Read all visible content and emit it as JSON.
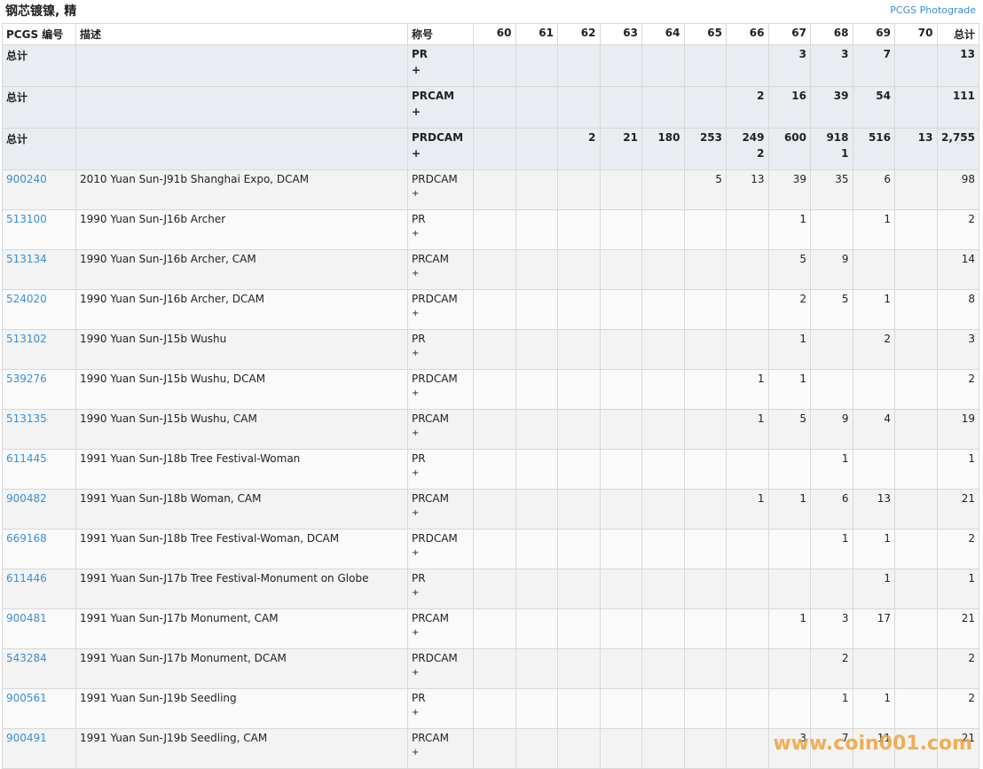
{
  "header": {
    "title": "钢芯镀镍, 精",
    "link": "PCGS Photograde"
  },
  "table": {
    "columns": [
      "PCGS 编号",
      "描述",
      "称号",
      "60",
      "61",
      "62",
      "63",
      "64",
      "65",
      "66",
      "67",
      "68",
      "69",
      "70",
      "总计"
    ],
    "summary": [
      {
        "label": "总计",
        "designation": "PR",
        "plus": "+",
        "grades": [
          null,
          null,
          null,
          null,
          null,
          null,
          null,
          3,
          3,
          7,
          null
        ],
        "total": 13
      },
      {
        "label": "总计",
        "designation": "PRCAM",
        "plus": "+",
        "grades": [
          null,
          null,
          null,
          null,
          null,
          null,
          2,
          16,
          39,
          54,
          null
        ],
        "total": 111
      },
      {
        "label": "总计",
        "designation": "PRDCAM",
        "plus": "+",
        "grades": [
          null,
          null,
          2,
          21,
          180,
          253,
          249,
          600,
          918,
          516,
          13
        ],
        "plus_grades": [
          null,
          null,
          null,
          null,
          null,
          null,
          2,
          null,
          1,
          null,
          null
        ],
        "total": "2,755"
      }
    ],
    "rows": [
      {
        "pcgs": "900240",
        "description": "2010 Yuan Sun-J91b Shanghai Expo, DCAM",
        "designation": "PRDCAM",
        "plus": "+",
        "grades": [
          null,
          null,
          null,
          null,
          null,
          5,
          13,
          39,
          35,
          6,
          null
        ],
        "total": 98
      },
      {
        "pcgs": "513100",
        "description": "1990 Yuan Sun-J16b Archer",
        "designation": "PR",
        "plus": "+",
        "grades": [
          null,
          null,
          null,
          null,
          null,
          null,
          null,
          1,
          null,
          1,
          null
        ],
        "total": 2
      },
      {
        "pcgs": "513134",
        "description": "1990 Yuan Sun-J16b Archer, CAM",
        "designation": "PRCAM",
        "plus": "+",
        "grades": [
          null,
          null,
          null,
          null,
          null,
          null,
          null,
          5,
          9,
          null,
          null
        ],
        "total": 14
      },
      {
        "pcgs": "524020",
        "description": "1990 Yuan Sun-J16b Archer, DCAM",
        "designation": "PRDCAM",
        "plus": "+",
        "grades": [
          null,
          null,
          null,
          null,
          null,
          null,
          null,
          2,
          5,
          1,
          null
        ],
        "total": 8
      },
      {
        "pcgs": "513102",
        "description": "1990 Yuan Sun-J15b Wushu",
        "designation": "PR",
        "plus": "+",
        "grades": [
          null,
          null,
          null,
          null,
          null,
          null,
          null,
          1,
          null,
          2,
          null
        ],
        "total": 3
      },
      {
        "pcgs": "539276",
        "description": "1990 Yuan Sun-J15b Wushu, DCAM",
        "designation": "PRDCAM",
        "plus": "+",
        "grades": [
          null,
          null,
          null,
          null,
          null,
          null,
          1,
          1,
          null,
          null,
          null
        ],
        "total": 2
      },
      {
        "pcgs": "513135",
        "description": "1990 Yuan Sun-J15b Wushu, CAM",
        "designation": "PRCAM",
        "plus": "+",
        "grades": [
          null,
          null,
          null,
          null,
          null,
          null,
          1,
          5,
          9,
          4,
          null
        ],
        "total": 19
      },
      {
        "pcgs": "611445",
        "description": "1991 Yuan Sun-J18b Tree Festival-Woman",
        "designation": "PR",
        "plus": "+",
        "grades": [
          null,
          null,
          null,
          null,
          null,
          null,
          null,
          null,
          1,
          null,
          null
        ],
        "total": 1
      },
      {
        "pcgs": "900482",
        "description": "1991 Yuan Sun-J18b Woman, CAM",
        "designation": "PRCAM",
        "plus": "+",
        "grades": [
          null,
          null,
          null,
          null,
          null,
          null,
          1,
          1,
          6,
          13,
          null
        ],
        "total": 21
      },
      {
        "pcgs": "669168",
        "description": "1991 Yuan Sun-J18b Tree Festival-Woman, DCAM",
        "designation": "PRDCAM",
        "plus": "+",
        "grades": [
          null,
          null,
          null,
          null,
          null,
          null,
          null,
          null,
          1,
          1,
          null
        ],
        "total": 2
      },
      {
        "pcgs": "611446",
        "description": "1991 Yuan Sun-J17b Tree Festival-Monument on Globe",
        "designation": "PR",
        "plus": "+",
        "grades": [
          null,
          null,
          null,
          null,
          null,
          null,
          null,
          null,
          null,
          1,
          null
        ],
        "total": 1
      },
      {
        "pcgs": "900481",
        "description": "1991 Yuan Sun-J17b Monument, CAM",
        "designation": "PRCAM",
        "plus": "+",
        "grades": [
          null,
          null,
          null,
          null,
          null,
          null,
          null,
          1,
          3,
          17,
          null
        ],
        "total": 21
      },
      {
        "pcgs": "543284",
        "description": "1991 Yuan Sun-J17b Monument, DCAM",
        "designation": "PRDCAM",
        "plus": "+",
        "grades": [
          null,
          null,
          null,
          null,
          null,
          null,
          null,
          null,
          2,
          null,
          null
        ],
        "total": 2
      },
      {
        "pcgs": "900561",
        "description": "1991 Yuan Sun-J19b Seedling",
        "designation": "PR",
        "plus": "+",
        "grades": [
          null,
          null,
          null,
          null,
          null,
          null,
          null,
          null,
          1,
          1,
          null
        ],
        "total": 2
      },
      {
        "pcgs": "900491",
        "description": "1991 Yuan Sun-J19b Seedling, CAM",
        "designation": "PRCAM",
        "plus": "+",
        "grades": [
          null,
          null,
          null,
          null,
          null,
          null,
          null,
          3,
          7,
          11,
          null
        ],
        "total": 21
      }
    ]
  },
  "watermark": "www.coin001.com"
}
